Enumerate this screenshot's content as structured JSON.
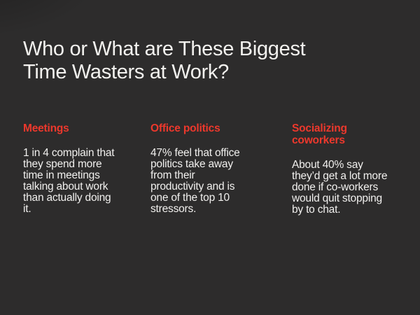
{
  "slide": {
    "title": "Who or What are These Biggest\nTime Wasters at Work?",
    "columns": [
      {
        "heading": "Meetings",
        "body": "1 in 4 complain that\nthey spend more\ntime in meetings\ntalking about work\nthan actually doing\nit."
      },
      {
        "heading": "Office politics",
        "body": "47% feel that office\npolitics take away\nfrom their\nproductivity and is\none of the top 10\nstressors."
      },
      {
        "heading": "Socializing\ncoworkers",
        "body": "About 40% say\nthey’d get a lot more\ndone if co-workers\nwould quit stopping\nby to chat."
      }
    ],
    "colors": {
      "background": "#2d2c2c",
      "title": "#f3f2ef",
      "heading": "#ed382c",
      "body": "#f1f0ee"
    }
  }
}
